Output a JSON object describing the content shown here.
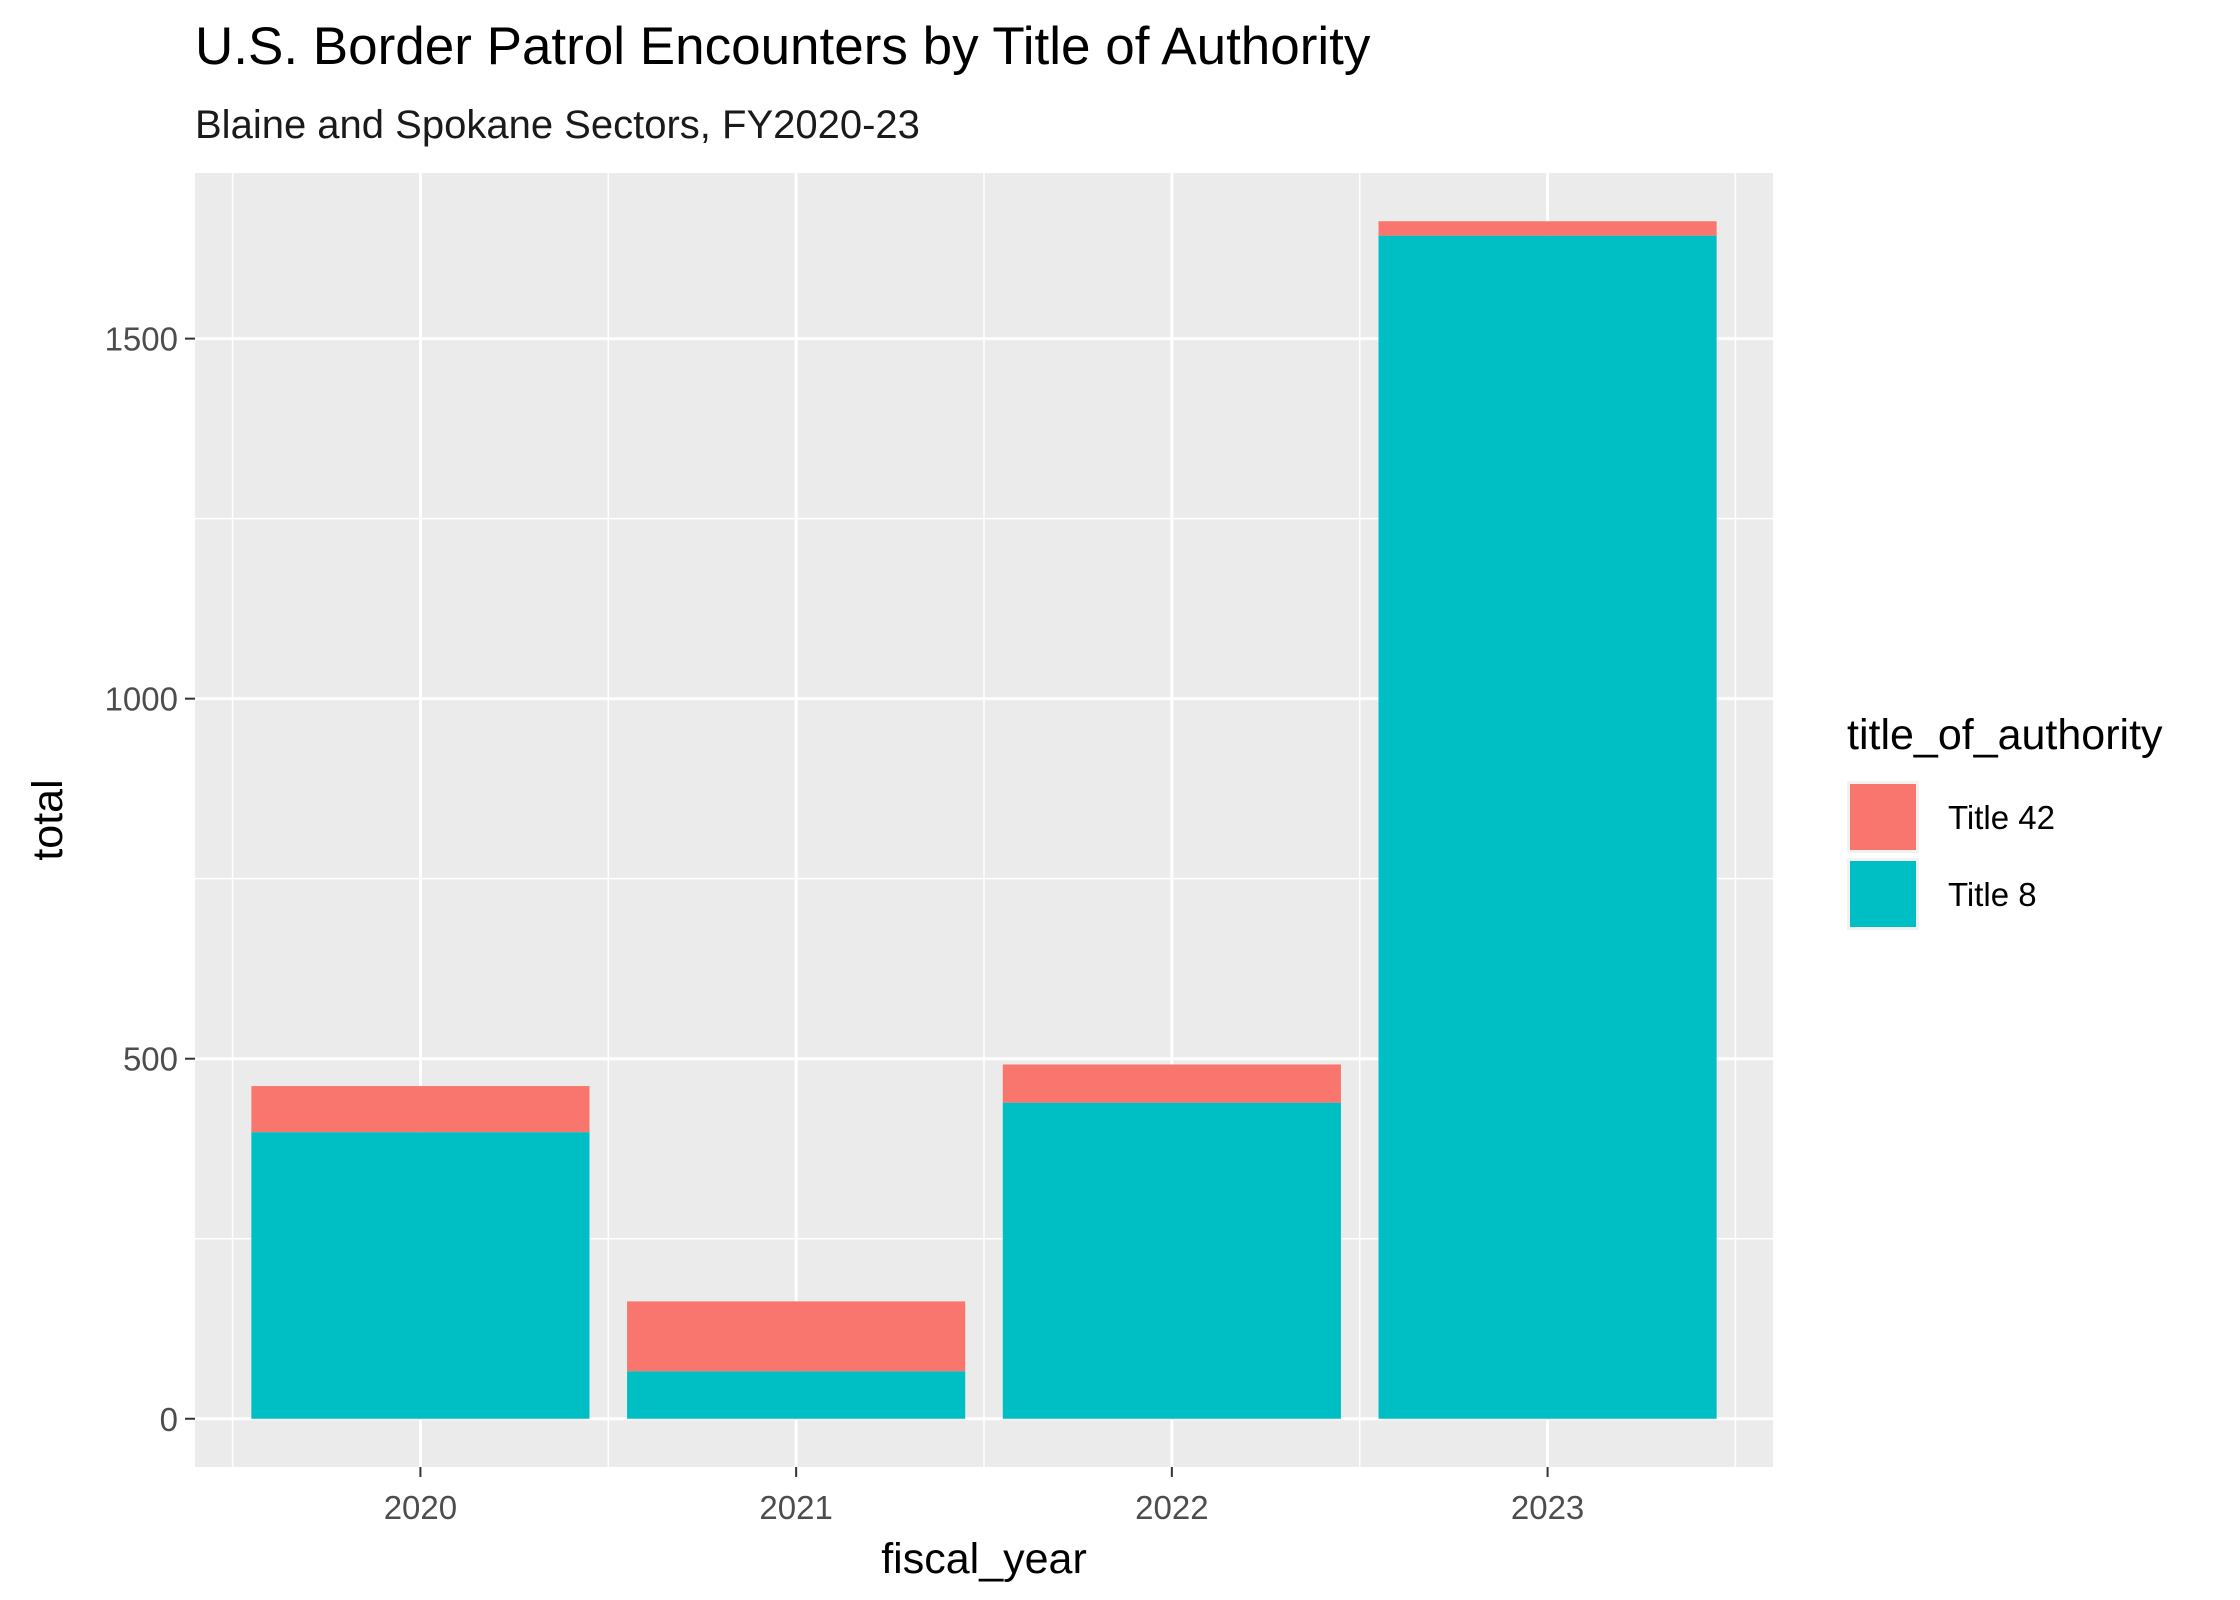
{
  "chart_data": {
    "type": "bar",
    "stacked": true,
    "title": "U.S. Border Patrol Encounters by Title of Authority",
    "subtitle": "Blaine and Spokane Sectors, FY2020-23",
    "xlabel": "fiscal_year",
    "ylabel": "total",
    "categories": [
      "2020",
      "2021",
      "2022",
      "2023"
    ],
    "y_ticks": [
      0,
      500,
      1000,
      1500
    ],
    "y_tick_labels": [
      "0",
      "500",
      "1000",
      "1500"
    ],
    "ylim": [
      -67,
      1730
    ],
    "grid": true,
    "legend": {
      "title": "title_of_authority",
      "placement": "right",
      "entries": [
        "Title 42",
        "Title 8"
      ]
    },
    "series": [
      {
        "name": "Title 8",
        "color": "#00BFC4",
        "values": [
          398,
          66,
          439,
          1643
        ]
      },
      {
        "name": "Title 42",
        "color": "#F8766D",
        "values": [
          64,
          97,
          53,
          20
        ]
      }
    ],
    "colors": {
      "panel": "#EBEBEB",
      "grid": "#FFFFFF",
      "tick": "#333333"
    }
  }
}
